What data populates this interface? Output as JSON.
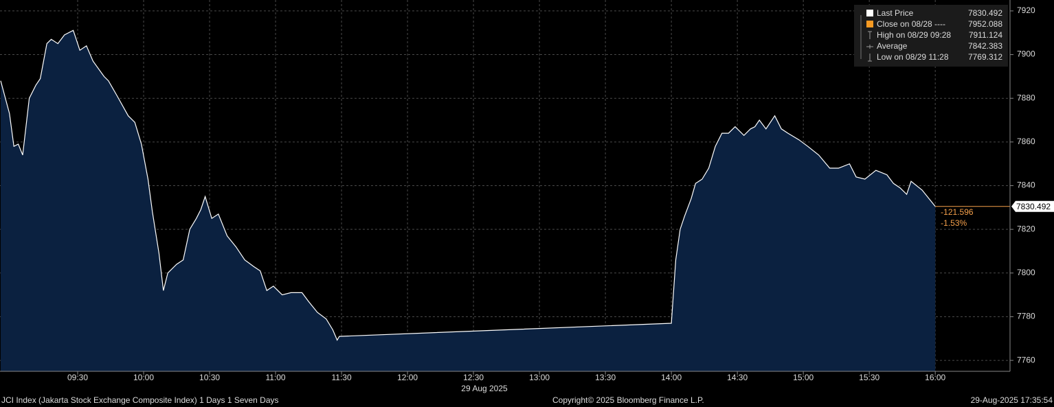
{
  "chart_data": {
    "type": "area",
    "series": [
      {
        "name": "Last Price",
        "color": "#ffffff",
        "fill": "#0b2140",
        "x": [
          "08:55",
          "08:59",
          "09:01",
          "09:03",
          "09:05",
          "09:08",
          "09:11",
          "09:13",
          "09:16",
          "09:18",
          "09:21",
          "09:24",
          "09:28",
          "09:31",
          "09:34",
          "09:37",
          "09:42",
          "09:44",
          "09:48",
          "09:53",
          "09:56",
          "09:59",
          "10:02",
          "10:04",
          "10:07",
          "10:09",
          "10:11",
          "10:15",
          "10:18",
          "10:21",
          "10:24",
          "10:26",
          "10:28",
          "10:31",
          "10:34",
          "10:38",
          "10:42",
          "10:46",
          "10:50",
          "10:53",
          "10:56",
          "10:59",
          "11:03",
          "11:07",
          "11:12",
          "11:15",
          "11:19",
          "11:23",
          "11:26",
          "11:28",
          "11:29",
          "14:00",
          "14:02",
          "14:04",
          "14:06",
          "14:09",
          "14:11",
          "14:14",
          "14:17",
          "14:20",
          "14:23",
          "14:26",
          "14:29",
          "14:33",
          "14:36",
          "14:38",
          "14:40",
          "14:43",
          "14:47",
          "14:50",
          "14:53",
          "14:58",
          "15:02",
          "15:07",
          "15:12",
          "15:16",
          "15:21",
          "15:24",
          "15:28",
          "15:33",
          "15:38",
          "15:41",
          "15:44",
          "15:47",
          "15:49",
          "15:54",
          "16:00"
        ],
        "values": [
          7888,
          7873,
          7858,
          7859,
          7854,
          7880,
          7886,
          7889,
          7905,
          7907,
          7905,
          7909,
          7911.124,
          7902,
          7904,
          7897,
          7890,
          7888,
          7881,
          7872,
          7869,
          7859,
          7843,
          7828,
          7809,
          7792,
          7800,
          7804,
          7806,
          7820,
          7825,
          7829,
          7835,
          7825,
          7827,
          7817,
          7812,
          7806,
          7803,
          7801,
          7792,
          7794,
          7790,
          7791,
          7791,
          7787,
          7782,
          7779,
          7774,
          7769.312,
          7771,
          7777,
          7806,
          7820,
          7826,
          7834,
          7841,
          7843,
          7848,
          7858,
          7864,
          7864,
          7867,
          7863,
          7866,
          7867,
          7870,
          7866,
          7872,
          7866,
          7864,
          7861,
          7858,
          7854,
          7848,
          7848,
          7850,
          7844,
          7843,
          7847,
          7845,
          7841,
          7839,
          7836,
          7842,
          7838,
          7830.492
        ]
      }
    ],
    "xlim": [
      "08:55",
      "16:34"
    ],
    "xticks": [
      "09:30",
      "10:00",
      "10:30",
      "11:00",
      "11:30",
      "12:00",
      "12:30",
      "13:00",
      "13:30",
      "14:00",
      "14:30",
      "15:00",
      "15:30",
      "16:00"
    ],
    "x_date_label": "29 Aug 2025",
    "ylim": [
      7755,
      7925
    ],
    "yticks": [
      7760,
      7780,
      7800,
      7820,
      7840,
      7860,
      7880,
      7900,
      7920
    ],
    "grid": true,
    "last_price": 7830.492,
    "change": -121.596,
    "change_pct_label": "-1.53%",
    "change_color": "#f5a04b",
    "legend": [
      {
        "label": "Last Price",
        "value": 7830.492
      },
      {
        "label": "Close on 08/28 ----",
        "value": 7952.088
      },
      {
        "label": "High on 08/29 09:28",
        "value": 7911.124
      },
      {
        "label": "Average",
        "value": 7842.383
      },
      {
        "label": "Low on 08/29 11:28",
        "value": 7769.312
      }
    ]
  },
  "footer": {
    "left": "JCI Index (Jakarta Stock Exchange Composite Index) 1 Days 1 Seven Days",
    "center": "Copyright© 2025 Bloomberg Finance L.P.",
    "right": "29-Aug-2025 17:35:54"
  }
}
